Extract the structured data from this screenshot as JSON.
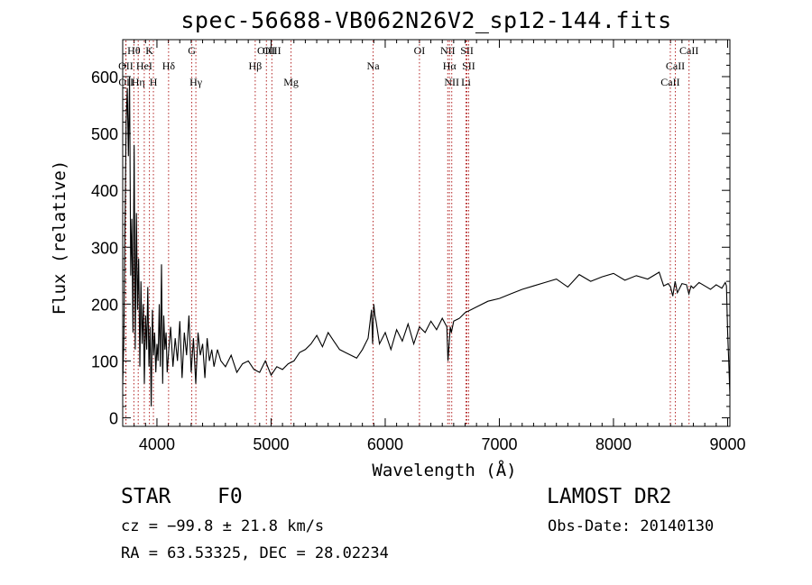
{
  "title": "spec-56688-VB062N26V2_sp12-144.fits",
  "info": {
    "object_type": "STAR",
    "subclass": "F0",
    "survey": "LAMOST DR2",
    "cz": "cz = −99.8 ± 21.8 km/s",
    "obs_date": "Obs-Date: 20140130",
    "radec": "RA =  63.53325, DEC =  28.02234"
  },
  "chart_data": {
    "type": "line",
    "title": "spec-56688-VB062N26V2_sp12-144.fits",
    "xlabel": "Wavelength (Å)",
    "ylabel": "Flux (relative)",
    "xlim": [
      3700,
      9020
    ],
    "ylim": [
      -15,
      665
    ],
    "xticks": [
      4000,
      5000,
      6000,
      7000,
      8000,
      9000
    ],
    "yticks": [
      0,
      100,
      200,
      300,
      400,
      500,
      600
    ],
    "line_color": "#000000",
    "marker_color": "#b22222",
    "series": [
      {
        "x": [
          3700,
          3710,
          3720,
          3730,
          3740,
          3750,
          3760,
          3770,
          3780,
          3790,
          3800,
          3810,
          3820,
          3830,
          3840,
          3850,
          3860,
          3870,
          3880,
          3890,
          3900,
          3910,
          3920,
          3930,
          3940,
          3950,
          3960,
          3970,
          3980,
          3990,
          4000,
          4010,
          4020,
          4030,
          4040,
          4050,
          4060,
          4070,
          4080,
          4090,
          4100,
          4120,
          4140,
          4160,
          4180,
          4200,
          4220,
          4240,
          4260,
          4280,
          4300,
          4320,
          4340,
          4360,
          4380,
          4400,
          4420,
          4440,
          4460,
          4480,
          4500,
          4530,
          4560,
          4600,
          4650,
          4700,
          4750,
          4800,
          4850,
          4900,
          4950,
          5000,
          5050,
          5100,
          5150,
          5200,
          5250,
          5300,
          5350,
          5400,
          5450,
          5500,
          5550,
          5600,
          5650,
          5700,
          5750,
          5800,
          5850,
          5880,
          5890,
          5900,
          5910,
          5920,
          5950,
          6000,
          6050,
          6100,
          6150,
          6200,
          6250,
          6300,
          6350,
          6400,
          6450,
          6500,
          6540,
          6550,
          6560,
          6570,
          6580,
          6600,
          6650,
          6700,
          6750,
          6800,
          6900,
          7000,
          7100,
          7200,
          7300,
          7400,
          7500,
          7600,
          7700,
          7800,
          7900,
          8000,
          8100,
          8200,
          8300,
          8400,
          8440,
          8480,
          8500,
          8520,
          8540,
          8560,
          8600,
          8640,
          8660,
          8680,
          8700,
          8750,
          8800,
          8850,
          8900,
          8950,
          8980,
          8990,
          9000,
          9010,
          9020
        ],
        "y": [
          60,
          140,
          330,
          520,
          580,
          460,
          600,
          250,
          350,
          150,
          480,
          120,
          360,
          190,
          280,
          90,
          240,
          130,
          200,
          60,
          180,
          120,
          230,
          90,
          160,
          20,
          190,
          110,
          150,
          80,
          130,
          100,
          200,
          90,
          270,
          60,
          180,
          120,
          150,
          80,
          110,
          160,
          90,
          140,
          100,
          170,
          70,
          150,
          110,
          180,
          80,
          140,
          60,
          150,
          110,
          130,
          70,
          140,
          100,
          120,
          90,
          120,
          100,
          90,
          110,
          80,
          95,
          100,
          85,
          80,
          100,
          75,
          90,
          85,
          95,
          100,
          115,
          120,
          130,
          145,
          125,
          150,
          135,
          120,
          115,
          110,
          105,
          120,
          140,
          190,
          130,
          200,
          180,
          170,
          130,
          150,
          120,
          155,
          135,
          165,
          130,
          160,
          150,
          170,
          155,
          175,
          160,
          100,
          130,
          160,
          150,
          170,
          175,
          185,
          190,
          195,
          205,
          210,
          218,
          226,
          232,
          238,
          244,
          230,
          252,
          240,
          248,
          254,
          242,
          250,
          244,
          256,
          232,
          236,
          230,
          214,
          240,
          220,
          236,
          234,
          218,
          232,
          228,
          238,
          232,
          226,
          234,
          228,
          238,
          232,
          150,
          100,
          40
        ]
      }
    ],
    "line_markers": [
      {
        "label": "OII",
        "x": 3727,
        "row": 2
      },
      {
        "label": "OII",
        "x": 3729,
        "row": 3
      },
      {
        "label": "Hθ",
        "x": 3798,
        "row": 1
      },
      {
        "label": "Hη",
        "x": 3836,
        "row": 3
      },
      {
        "label": "HeI",
        "x": 3889,
        "row": 2
      },
      {
        "label": "K",
        "x": 3934,
        "row": 1
      },
      {
        "label": "H",
        "x": 3969,
        "row": 3
      },
      {
        "label": "Hδ",
        "x": 4102,
        "row": 2
      },
      {
        "label": "G",
        "x": 4305,
        "row": 1
      },
      {
        "label": "Hγ",
        "x": 4341,
        "row": 3
      },
      {
        "label": "Hβ",
        "x": 4861,
        "row": 2
      },
      {
        "label": "OIII",
        "x": 4959,
        "row": 1
      },
      {
        "label": "OIII",
        "x": 5007,
        "row": 1
      },
      {
        "label": "Mg",
        "x": 5175,
        "row": 3
      },
      {
        "label": "Na",
        "x": 5894,
        "row": 2
      },
      {
        "label": "OI",
        "x": 6300,
        "row": 1
      },
      {
        "label": "NII",
        "x": 6548,
        "row": 1
      },
      {
        "label": "NII",
        "x": 6583,
        "row": 3
      },
      {
        "label": "Hα",
        "x": 6563,
        "row": 2
      },
      {
        "label": "SII",
        "x": 6716,
        "row": 1
      },
      {
        "label": "SII",
        "x": 6731,
        "row": 2
      },
      {
        "label": "Li",
        "x": 6708,
        "row": 3
      },
      {
        "label": "CaII",
        "x": 8498,
        "row": 3
      },
      {
        "label": "CaII",
        "x": 8542,
        "row": 2
      },
      {
        "label": "CaII",
        "x": 8662,
        "row": 1
      }
    ]
  }
}
